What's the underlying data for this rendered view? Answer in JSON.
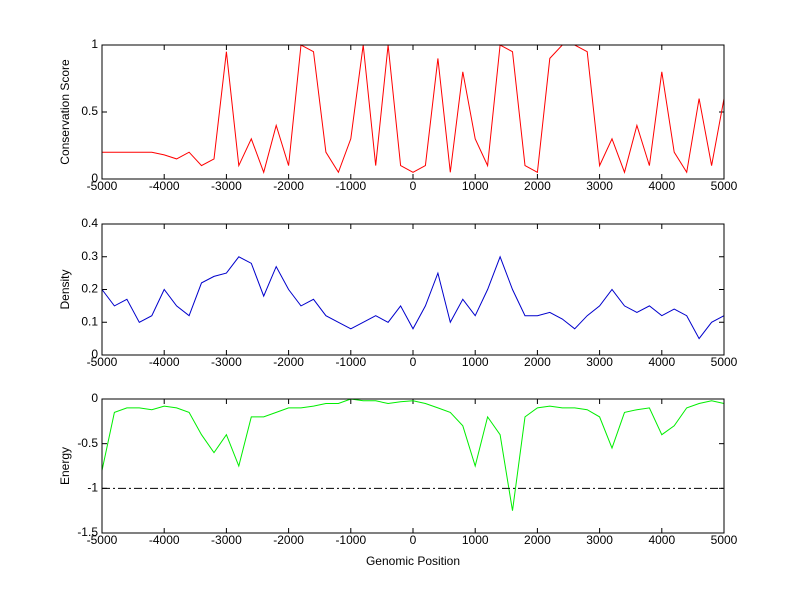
{
  "chart_data": [
    {
      "type": "line",
      "ylabel": "Conservation Score",
      "color": "#ff0000",
      "x": [
        -5000,
        -4800,
        -4600,
        -4400,
        -4200,
        -4000,
        -3800,
        -3600,
        -3400,
        -3200,
        -3000,
        -2800,
        -2600,
        -2400,
        -2200,
        -2000,
        -1800,
        -1600,
        -1400,
        -1200,
        -1000,
        -800,
        -600,
        -400,
        -200,
        0,
        200,
        400,
        600,
        800,
        1000,
        1200,
        1400,
        1600,
        1800,
        2000,
        2200,
        2400,
        2600,
        2800,
        3000,
        3200,
        3400,
        3600,
        3800,
        4000,
        4200,
        4400,
        4600,
        4800,
        5000
      ],
      "values": [
        0.2,
        0.2,
        0.2,
        0.2,
        0.2,
        0.18,
        0.15,
        0.2,
        0.1,
        0.15,
        0.95,
        0.1,
        0.3,
        0.05,
        0.4,
        0.1,
        1,
        0.95,
        0.2,
        0.05,
        0.3,
        1,
        0.1,
        1,
        0.1,
        0.05,
        0.1,
        0.9,
        0.05,
        0.8,
        0.3,
        0.1,
        1,
        0.95,
        0.1,
        0.05,
        0.9,
        1,
        1,
        0.95,
        0.1,
        0.3,
        0.05,
        0.4,
        0.1,
        0.8,
        0.2,
        0.05,
        0.6,
        0.1,
        0.6
      ],
      "xlim": [
        -5000,
        5000
      ],
      "xticks": [
        -5000,
        -4000,
        -3000,
        -2000,
        -1000,
        0,
        1000,
        2000,
        3000,
        4000,
        5000
      ],
      "ylim": [
        0,
        1
      ],
      "yticks": [
        0,
        0.5,
        1
      ]
    },
    {
      "type": "line",
      "ylabel": "Density",
      "color": "#0000cc",
      "x": [
        -5000,
        -4800,
        -4600,
        -4400,
        -4200,
        -4000,
        -3800,
        -3600,
        -3400,
        -3200,
        -3000,
        -2800,
        -2600,
        -2400,
        -2200,
        -2000,
        -1800,
        -1600,
        -1400,
        -1200,
        -1000,
        -800,
        -600,
        -400,
        -200,
        0,
        200,
        400,
        600,
        800,
        1000,
        1200,
        1400,
        1600,
        1800,
        2000,
        2200,
        2400,
        2600,
        2800,
        3000,
        3200,
        3400,
        3600,
        3800,
        4000,
        4200,
        4400,
        4600,
        4800,
        5000
      ],
      "values": [
        0.2,
        0.15,
        0.17,
        0.1,
        0.12,
        0.2,
        0.15,
        0.12,
        0.22,
        0.24,
        0.25,
        0.3,
        0.28,
        0.18,
        0.27,
        0.2,
        0.15,
        0.17,
        0.12,
        0.1,
        0.08,
        0.1,
        0.12,
        0.1,
        0.15,
        0.08,
        0.15,
        0.25,
        0.1,
        0.17,
        0.12,
        0.2,
        0.3,
        0.2,
        0.12,
        0.12,
        0.13,
        0.11,
        0.08,
        0.12,
        0.15,
        0.2,
        0.15,
        0.13,
        0.15,
        0.12,
        0.14,
        0.12,
        0.05,
        0.1,
        0.12
      ],
      "xlim": [
        -5000,
        5000
      ],
      "xticks": [
        -5000,
        -4000,
        -3000,
        -2000,
        -1000,
        0,
        1000,
        2000,
        3000,
        4000,
        5000
      ],
      "ylim": [
        0,
        0.4
      ],
      "yticks": [
        0,
        0.1,
        0.2,
        0.3,
        0.4
      ]
    },
    {
      "type": "line",
      "ylabel": "Energy",
      "xlabel": "Genomic Position",
      "color": "#00ee00",
      "x": [
        -5000,
        -4800,
        -4600,
        -4400,
        -4200,
        -4000,
        -3800,
        -3600,
        -3400,
        -3200,
        -3000,
        -2800,
        -2600,
        -2400,
        -2200,
        -2000,
        -1800,
        -1600,
        -1400,
        -1200,
        -1000,
        -800,
        -600,
        -400,
        -200,
        0,
        200,
        400,
        600,
        800,
        1000,
        1200,
        1400,
        1600,
        1800,
        2000,
        2200,
        2400,
        2600,
        2800,
        3000,
        3200,
        3400,
        3600,
        3800,
        4000,
        4200,
        4400,
        4600,
        4800,
        5000
      ],
      "values": [
        -0.8,
        -0.15,
        -0.1,
        -0.1,
        -0.12,
        -0.08,
        -0.1,
        -0.15,
        -0.4,
        -0.6,
        -0.4,
        -0.75,
        -0.2,
        -0.2,
        -0.15,
        -0.1,
        -0.1,
        -0.08,
        -0.05,
        -0.05,
        0,
        -0.02,
        -0.02,
        -0.05,
        -0.03,
        -0.02,
        -0.05,
        -0.1,
        -0.15,
        -0.3,
        -0.75,
        -0.2,
        -0.4,
        -1.25,
        -0.2,
        -0.1,
        -0.08,
        -0.1,
        -0.1,
        -0.12,
        -0.2,
        -0.55,
        -0.15,
        -0.12,
        -0.1,
        -0.4,
        -0.3,
        -0.1,
        -0.05,
        -0.02,
        -0.05
      ],
      "reference_line": -1,
      "xlim": [
        -5000,
        5000
      ],
      "xticks": [
        -5000,
        -4000,
        -3000,
        -2000,
        -1000,
        0,
        1000,
        2000,
        3000,
        4000,
        5000
      ],
      "ylim": [
        -1.5,
        0
      ],
      "yticks": [
        -1.5,
        -1,
        -0.5,
        0
      ]
    }
  ]
}
